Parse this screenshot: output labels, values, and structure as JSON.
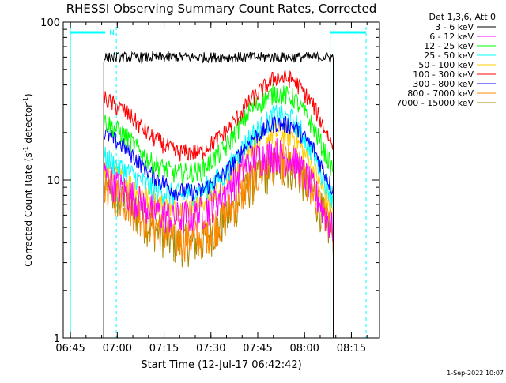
{
  "chart_data": {
    "type": "line",
    "title": "RHESSI Observing Summary Count Rates, Corrected",
    "xlabel": "Start Time (12-Jul-17 06:42:42)",
    "ylabel_main": "Corrected Count Rate (s",
    "ylabel_sup1": "-1",
    "ylabel_mid": " detector",
    "ylabel_sup2": "-1",
    "ylabel_end": ")",
    "yscale": "log",
    "ylim": [
      1,
      100
    ],
    "xlim": [
      "06:42:42",
      "08:24:00"
    ],
    "y_tick_labels": [
      "1",
      "10",
      "100"
    ],
    "x_tick_labels": [
      "06:45",
      "07:00",
      "07:15",
      "07:30",
      "07:45",
      "08:00",
      "08:15"
    ],
    "x_tick_minutes": [
      2.3,
      17.3,
      32.3,
      47.3,
      62.3,
      77.3,
      92.3
    ],
    "data_start_minute": 13.0,
    "data_end_minute": 86.5,
    "legend_title": "Det 1,3,6, Att 0",
    "legend_position": "top-right-outside",
    "series": [
      {
        "name": "3 - 6 keV",
        "color": "#000000",
        "values": [
          60,
          60,
          60,
          60,
          60,
          60,
          60,
          60,
          60,
          60,
          60
        ]
      },
      {
        "name": "6 - 12 keV",
        "color": "#ff00ff",
        "values": [
          11,
          8.5,
          6.5,
          5.8,
          6.2,
          8.5,
          13.5,
          15,
          13.5,
          9,
          5
        ]
      },
      {
        "name": "12 - 25 keV",
        "color": "#00ff00",
        "values": [
          24,
          19,
          13,
          11,
          11.5,
          16,
          28,
          36,
          33,
          22,
          12
        ]
      },
      {
        "name": "25 - 50 keV",
        "color": "#00ffff",
        "values": [
          14,
          11.5,
          9,
          8,
          8.5,
          11,
          19,
          26,
          24,
          15,
          8
        ]
      },
      {
        "name": "50 - 100 keV",
        "color": "#ffcc00",
        "values": [
          12,
          10,
          7.5,
          6.5,
          7,
          9.5,
          16,
          20,
          19,
          12,
          6.5
        ]
      },
      {
        "name": "100 - 300 keV",
        "color": "#ff0000",
        "values": [
          33,
          27,
          19,
          15,
          15,
          20,
          32,
          45,
          43,
          30,
          17
        ]
      },
      {
        "name": "300 - 800 keV",
        "color": "#0000ff",
        "values": [
          20,
          16,
          11,
          8.5,
          8.5,
          11,
          18,
          23,
          22,
          16,
          9
        ]
      },
      {
        "name": "800 - 7000 keV",
        "color": "#ff8800",
        "values": [
          9.5,
          7.5,
          5.5,
          4.3,
          4.4,
          6,
          10,
          13.5,
          13,
          9,
          5
        ]
      },
      {
        "name": "7000 - 15000 keV",
        "color": "#aa8800",
        "values": [
          9,
          7,
          5.2,
          4,
          4.1,
          5.6,
          9.5,
          12.5,
          12,
          8.5,
          4.6
        ]
      }
    ],
    "series_minutes": [
      13,
      20,
      28,
      36,
      44,
      52,
      60,
      68,
      74,
      80,
      86
    ],
    "annotations": {
      "marker_letter": "N",
      "night_start_minute": 2.3,
      "night_end_minute": 13.5,
      "saa_line_minute": 17.0,
      "night2_start_minute": 85.5,
      "night2_end_minute": 97.0
    },
    "grid": false
  },
  "footer": {
    "timestamp": "1-Sep-2022 10:07"
  }
}
